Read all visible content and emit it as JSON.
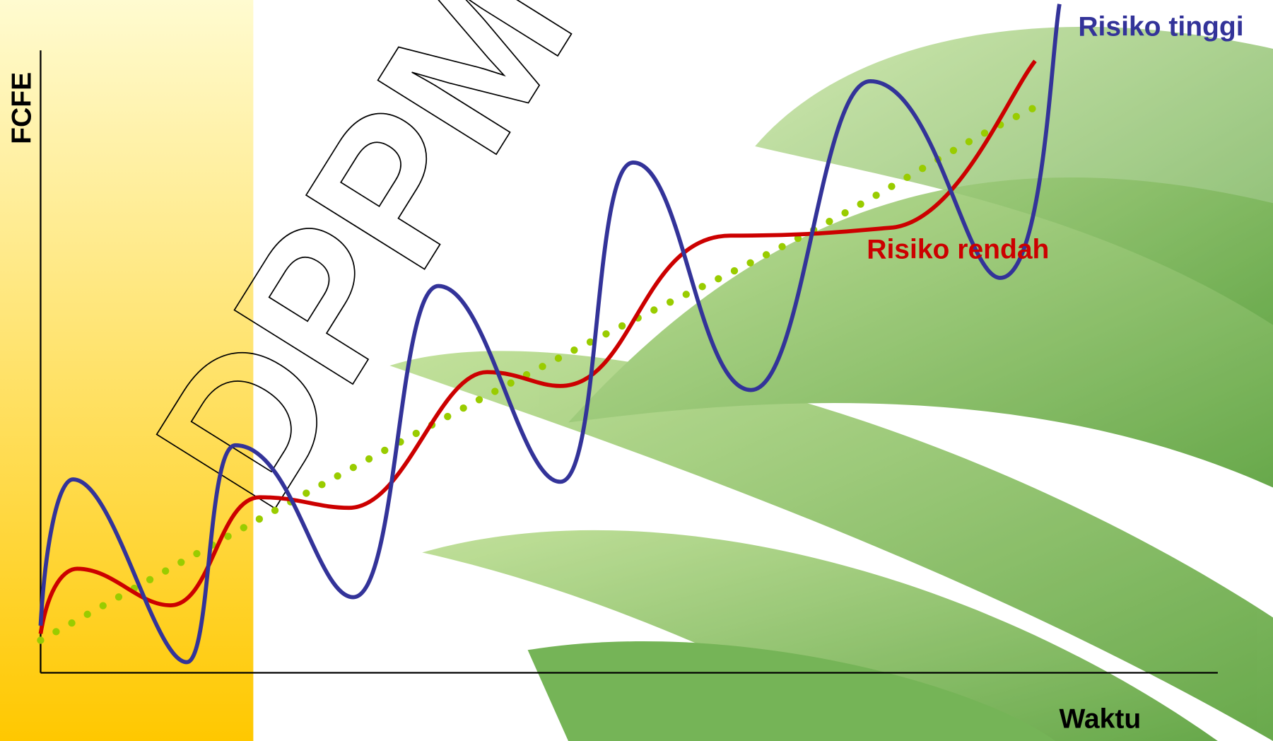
{
  "axes": {
    "y_label": "FCFE",
    "x_label": "Waktu"
  },
  "curves": {
    "high_risk": "Risiko tinggi",
    "low_risk": "Risiko rendah"
  },
  "watermark": "DPPM SOM"
}
